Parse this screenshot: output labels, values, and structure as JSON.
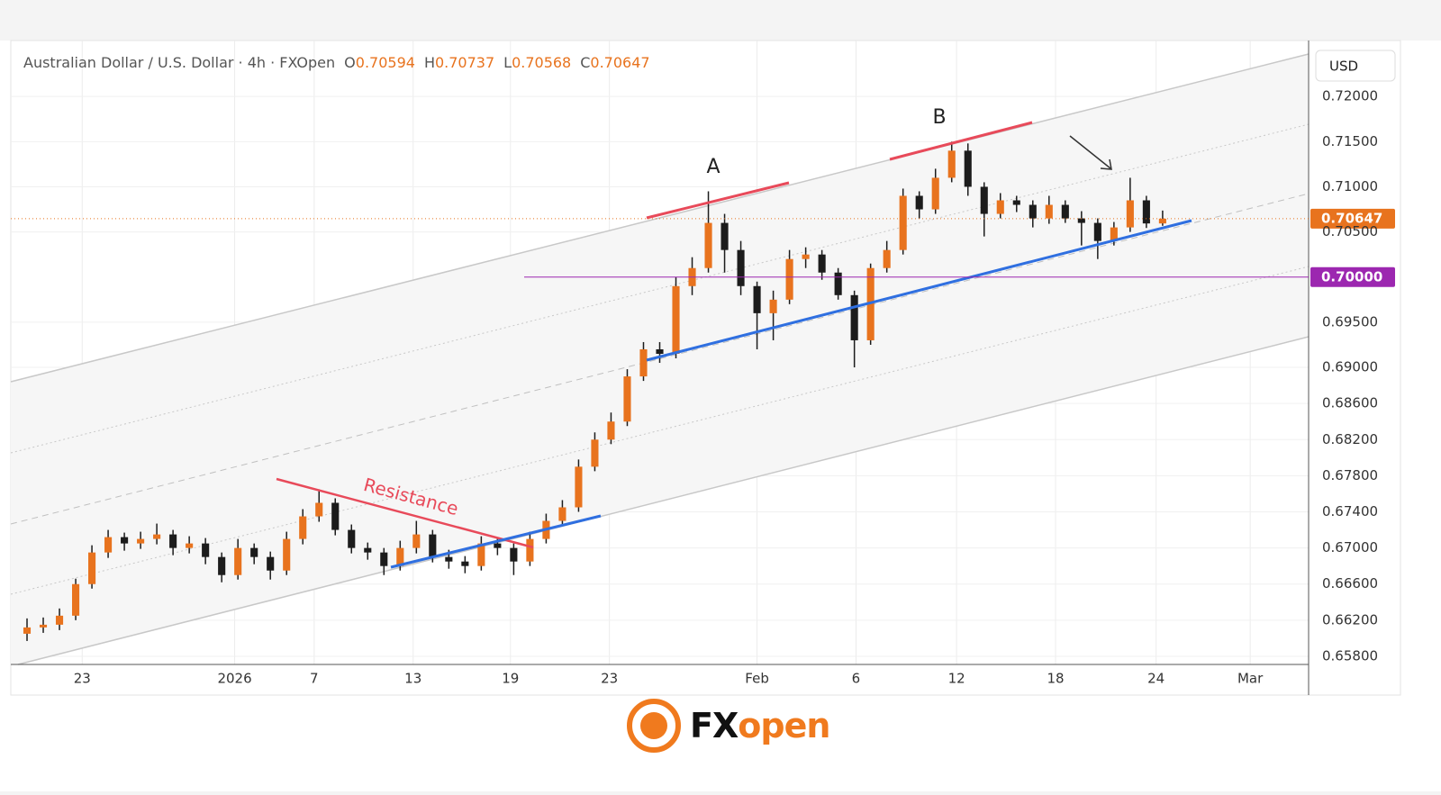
{
  "chart_data": {
    "type": "candlestick",
    "title": "Australian Dollar / U.S. Dollar · 4h · FXOpen",
    "ohlc_labels": [
      "O",
      "H",
      "L",
      "C"
    ],
    "currency": "USD",
    "up_color": "#e8731e",
    "down_color": "#1c1c1c",
    "grid": true,
    "x": [
      1,
      2,
      3,
      4,
      5,
      6,
      7,
      8,
      9,
      10,
      11,
      12,
      13,
      14,
      15,
      16,
      17,
      18,
      19,
      20,
      21,
      22,
      23,
      24,
      25,
      26,
      27,
      28,
      29,
      30,
      31,
      32,
      33,
      34,
      35,
      36,
      37,
      38,
      39,
      40,
      41,
      42,
      43,
      44,
      45,
      46,
      47,
      48,
      49,
      50,
      51,
      52,
      53,
      54,
      55,
      56,
      57,
      58,
      59,
      60,
      61,
      62,
      63,
      64,
      65,
      66,
      67,
      68,
      69,
      70,
      71
    ],
    "open": [
      0.6605,
      0.6612,
      0.6615,
      0.6625,
      0.666,
      0.6695,
      0.6712,
      0.6705,
      0.671,
      0.6715,
      0.67,
      0.6705,
      0.669,
      0.667,
      0.67,
      0.669,
      0.6675,
      0.671,
      0.6735,
      0.675,
      0.672,
      0.67,
      0.6695,
      0.668,
      0.67,
      0.6715,
      0.669,
      0.6685,
      0.668,
      0.6705,
      0.67,
      0.6685,
      0.671,
      0.673,
      0.6745,
      0.679,
      0.682,
      0.684,
      0.689,
      0.692,
      0.6915,
      0.699,
      0.701,
      0.706,
      0.703,
      0.699,
      0.696,
      0.6975,
      0.702,
      0.7025,
      0.7005,
      0.698,
      0.693,
      0.701,
      0.703,
      0.709,
      0.7075,
      0.711,
      0.714,
      0.71,
      0.707,
      0.7085,
      0.708,
      0.7065,
      0.708,
      0.7065,
      0.706,
      0.704,
      0.7055,
      0.7085,
      0.70594
    ],
    "high": [
      0.6622,
      0.6623,
      0.6633,
      0.6666,
      0.6703,
      0.672,
      0.6717,
      0.6718,
      0.6727,
      0.672,
      0.6713,
      0.6711,
      0.6695,
      0.671,
      0.6705,
      0.6696,
      0.6718,
      0.6743,
      0.6765,
      0.6755,
      0.6726,
      0.6706,
      0.67,
      0.6708,
      0.673,
      0.672,
      0.6698,
      0.6691,
      0.6713,
      0.6711,
      0.6705,
      0.6718,
      0.6738,
      0.6753,
      0.6798,
      0.6828,
      0.685,
      0.6898,
      0.6928,
      0.6928,
      0.7,
      0.7022,
      0.7095,
      0.707,
      0.704,
      0.6995,
      0.6985,
      0.703,
      0.7033,
      0.703,
      0.701,
      0.6985,
      0.7015,
      0.704,
      0.7098,
      0.7095,
      0.712,
      0.715,
      0.7148,
      0.7105,
      0.7093,
      0.709,
      0.7085,
      0.709,
      0.7085,
      0.7073,
      0.7065,
      0.7061,
      0.711,
      0.709,
      0.70737
    ],
    "low": [
      0.6597,
      0.6606,
      0.6609,
      0.662,
      0.6655,
      0.6689,
      0.6697,
      0.6699,
      0.6704,
      0.6692,
      0.6694,
      0.6682,
      0.6662,
      0.6665,
      0.6682,
      0.6665,
      0.667,
      0.6704,
      0.6729,
      0.6714,
      0.6694,
      0.6687,
      0.667,
      0.6675,
      0.6694,
      0.6684,
      0.6677,
      0.6672,
      0.6675,
      0.6692,
      0.667,
      0.668,
      0.6705,
      0.6725,
      0.674,
      0.6785,
      0.6815,
      0.6835,
      0.6885,
      0.6905,
      0.691,
      0.698,
      0.7005,
      0.7005,
      0.698,
      0.692,
      0.693,
      0.697,
      0.701,
      0.6997,
      0.6975,
      0.69,
      0.6925,
      0.7005,
      0.7025,
      0.7065,
      0.707,
      0.7105,
      0.709,
      0.7045,
      0.7065,
      0.7072,
      0.7055,
      0.7059,
      0.706,
      0.7035,
      0.702,
      0.7035,
      0.705,
      0.70544,
      0.70568
    ],
    "close": [
      0.6612,
      0.6615,
      0.6625,
      0.666,
      0.6695,
      0.6712,
      0.6705,
      0.671,
      0.6715,
      0.67,
      0.6705,
      0.669,
      0.667,
      0.67,
      0.669,
      0.6675,
      0.671,
      0.6735,
      0.675,
      0.672,
      0.67,
      0.6695,
      0.668,
      0.67,
      0.6715,
      0.669,
      0.6685,
      0.668,
      0.6705,
      0.67,
      0.6685,
      0.671,
      0.673,
      0.6745,
      0.679,
      0.682,
      0.684,
      0.689,
      0.692,
      0.6915,
      0.699,
      0.701,
      0.706,
      0.703,
      0.699,
      0.696,
      0.6975,
      0.702,
      0.7025,
      0.7005,
      0.698,
      0.693,
      0.701,
      0.703,
      0.709,
      0.7075,
      0.711,
      0.714,
      0.71,
      0.707,
      0.7085,
      0.708,
      0.7065,
      0.708,
      0.7065,
      0.706,
      0.704,
      0.7055,
      0.7085,
      0.70594,
      0.70647
    ],
    "xlim": [
      0,
      80
    ],
    "ylim": [
      0.6571,
      0.7259
    ],
    "xticks": [
      {
        "value": 4.4,
        "label": "23"
      },
      {
        "value": 13.8,
        "label": "2026"
      },
      {
        "value": 18.7,
        "label": "7"
      },
      {
        "value": 24.8,
        "label": "13"
      },
      {
        "value": 30.8,
        "label": "19"
      },
      {
        "value": 36.9,
        "label": "23"
      },
      {
        "value": 46,
        "label": "Feb"
      },
      {
        "value": 52.1,
        "label": "6"
      },
      {
        "value": 58.3,
        "label": "12"
      },
      {
        "value": 64.4,
        "label": "18"
      },
      {
        "value": 70.6,
        "label": "24"
      },
      {
        "value": 76.4,
        "label": "Mar"
      }
    ],
    "yticks": [
      {
        "value": 0.72,
        "label": "0.72000"
      },
      {
        "value": 0.715,
        "label": "0.71500"
      },
      {
        "value": 0.71,
        "label": "0.71000"
      },
      {
        "value": 0.705,
        "label": "0.70500"
      },
      {
        "value": 0.695,
        "label": "0.69500"
      },
      {
        "value": 0.69,
        "label": "0.69000"
      },
      {
        "value": 0.686,
        "label": "0.68600"
      },
      {
        "value": 0.682,
        "label": "0.68200"
      },
      {
        "value": 0.678,
        "label": "0.67800"
      },
      {
        "value": 0.674,
        "label": "0.67400"
      },
      {
        "value": 0.67,
        "label": "0.67000"
      },
      {
        "value": 0.666,
        "label": "0.66600"
      },
      {
        "value": 0.662,
        "label": "0.66200"
      },
      {
        "value": 0.658,
        "label": "0.65800"
      }
    ],
    "hline": {
      "value": 0.7,
      "label": "0.70000",
      "color": "#9c27b0"
    },
    "annotations": [
      "A",
      "B",
      "Resistance"
    ],
    "brand": [
      "FX",
      "open"
    ]
  }
}
